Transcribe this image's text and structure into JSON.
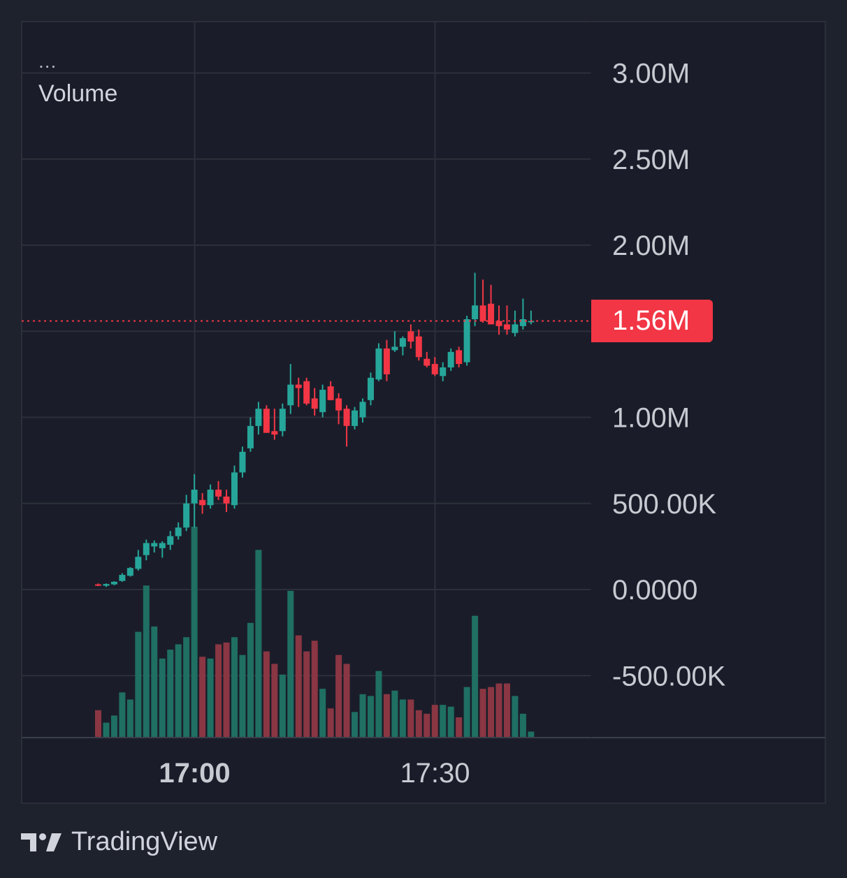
{
  "legend": {
    "menu": "...",
    "indicator": "Volume"
  },
  "price_badge": {
    "label": "1.56M",
    "color": "#f23645"
  },
  "footer": {
    "brand": "TradingView"
  },
  "colors": {
    "up": "#26a69a",
    "down": "#f23645",
    "vol_up": "#1f6f63",
    "vol_down": "#8a3643",
    "grid": "#2c303b",
    "axis_text": "#c7cad1",
    "background": "#1a1d29"
  },
  "chart_data": {
    "type": "candlestick",
    "title": "",
    "ylabel": "",
    "ylim": [
      -850000,
      3200000
    ],
    "y_ticks": [
      {
        "value": 3000000,
        "label": "3.00M"
      },
      {
        "value": 2500000,
        "label": "2.50M"
      },
      {
        "value": 2000000,
        "label": "2.00M"
      },
      {
        "value": 1500000,
        "label": "1.50M"
      },
      {
        "value": 1000000,
        "label": "1.00M"
      },
      {
        "value": 500000,
        "label": "500.00K"
      },
      {
        "value": 0,
        "label": "0.0000"
      },
      {
        "value": -500000,
        "label": "-500.00K"
      }
    ],
    "x_ticks": [
      {
        "label": "17:00",
        "bold": true,
        "bar_index": 12
      },
      {
        "label": "17:30",
        "bold": false,
        "bar_index": 42
      }
    ],
    "last_price": 1560000,
    "candles": [
      {
        "o": 30000,
        "h": 35000,
        "l": 20000,
        "c": 25000,
        "v": 0.15
      },
      {
        "o": 22000,
        "h": 35000,
        "l": 15000,
        "c": 32000,
        "v": 0.08
      },
      {
        "o": 30000,
        "h": 48000,
        "l": 25000,
        "c": 45000,
        "v": 0.12
      },
      {
        "o": 50000,
        "h": 95000,
        "l": 45000,
        "c": 85000,
        "v": 0.25
      },
      {
        "o": 80000,
        "h": 130000,
        "l": 75000,
        "c": 125000,
        "v": 0.21
      },
      {
        "o": 120000,
        "h": 230000,
        "l": 110000,
        "c": 190000,
        "v": 0.59
      },
      {
        "o": 200000,
        "h": 290000,
        "l": 170000,
        "c": 270000,
        "v": 0.85
      },
      {
        "o": 250000,
        "h": 285000,
        "l": 215000,
        "c": 270000,
        "v": 0.62
      },
      {
        "o": 240000,
        "h": 280000,
        "l": 185000,
        "c": 270000,
        "v": 0.44
      },
      {
        "o": 260000,
        "h": 340000,
        "l": 230000,
        "c": 310000,
        "v": 0.49
      },
      {
        "o": 310000,
        "h": 390000,
        "l": 290000,
        "c": 360000,
        "v": 0.52
      },
      {
        "o": 360000,
        "h": 550000,
        "l": 340000,
        "c": 500000,
        "v": 0.56
      },
      {
        "o": 500000,
        "h": 670000,
        "l": 360000,
        "c": 580000,
        "v": 1.18
      },
      {
        "o": 520000,
        "h": 560000,
        "l": 440000,
        "c": 490000,
        "v": 0.45
      },
      {
        "o": 490000,
        "h": 610000,
        "l": 470000,
        "c": 580000,
        "v": 0.44
      },
      {
        "o": 580000,
        "h": 630000,
        "l": 520000,
        "c": 540000,
        "v": 0.52
      },
      {
        "o": 540000,
        "h": 580000,
        "l": 450000,
        "c": 500000,
        "v": 0.53
      },
      {
        "o": 490000,
        "h": 720000,
        "l": 470000,
        "c": 680000,
        "v": 0.56
      },
      {
        "o": 680000,
        "h": 830000,
        "l": 650000,
        "c": 800000,
        "v": 0.46
      },
      {
        "o": 820000,
        "h": 1000000,
        "l": 800000,
        "c": 950000,
        "v": 0.64
      },
      {
        "o": 950000,
        "h": 1090000,
        "l": 900000,
        "c": 1050000,
        "v": 1.05
      },
      {
        "o": 1050000,
        "h": 1070000,
        "l": 910000,
        "c": 910000,
        "v": 0.48
      },
      {
        "o": 920000,
        "h": 1050000,
        "l": 870000,
        "c": 900000,
        "v": 0.41
      },
      {
        "o": 920000,
        "h": 1080000,
        "l": 890000,
        "c": 1050000,
        "v": 0.35
      },
      {
        "o": 1070000,
        "h": 1310000,
        "l": 1020000,
        "c": 1190000,
        "v": 0.82
      },
      {
        "o": 1190000,
        "h": 1230000,
        "l": 1060000,
        "c": 1170000,
        "v": 0.57
      },
      {
        "o": 1210000,
        "h": 1230000,
        "l": 1070000,
        "c": 1080000,
        "v": 0.48
      },
      {
        "o": 1110000,
        "h": 1170000,
        "l": 1010000,
        "c": 1050000,
        "v": 0.54
      },
      {
        "o": 1030000,
        "h": 1190000,
        "l": 1000000,
        "c": 1160000,
        "v": 0.27
      },
      {
        "o": 1180000,
        "h": 1210000,
        "l": 1100000,
        "c": 1100000,
        "v": 0.16
      },
      {
        "o": 1110000,
        "h": 1140000,
        "l": 960000,
        "c": 1040000,
        "v": 0.46
      },
      {
        "o": 1050000,
        "h": 1070000,
        "l": 830000,
        "c": 950000,
        "v": 0.41
      },
      {
        "o": 950000,
        "h": 1060000,
        "l": 930000,
        "c": 1040000,
        "v": 0.14
      },
      {
        "o": 1000000,
        "h": 1110000,
        "l": 970000,
        "c": 1090000,
        "v": 0.24
      },
      {
        "o": 1100000,
        "h": 1260000,
        "l": 1070000,
        "c": 1230000,
        "v": 0.23
      },
      {
        "o": 1220000,
        "h": 1430000,
        "l": 1210000,
        "c": 1400000,
        "v": 0.37
      },
      {
        "o": 1400000,
        "h": 1450000,
        "l": 1210000,
        "c": 1250000,
        "v": 0.24
      },
      {
        "o": 1390000,
        "h": 1500000,
        "l": 1380000,
        "c": 1410000,
        "v": 0.26
      },
      {
        "o": 1410000,
        "h": 1470000,
        "l": 1360000,
        "c": 1460000,
        "v": 0.21
      },
      {
        "o": 1500000,
        "h": 1540000,
        "l": 1400000,
        "c": 1440000,
        "v": 0.21
      },
      {
        "o": 1470000,
        "h": 1510000,
        "l": 1330000,
        "c": 1350000,
        "v": 0.15
      },
      {
        "o": 1340000,
        "h": 1380000,
        "l": 1290000,
        "c": 1300000,
        "v": 0.13
      },
      {
        "o": 1310000,
        "h": 1350000,
        "l": 1240000,
        "c": 1250000,
        "v": 0.18
      },
      {
        "o": 1240000,
        "h": 1320000,
        "l": 1210000,
        "c": 1290000,
        "v": 0.18
      },
      {
        "o": 1290000,
        "h": 1400000,
        "l": 1270000,
        "c": 1380000,
        "v": 0.17
      },
      {
        "o": 1390000,
        "h": 1410000,
        "l": 1290000,
        "c": 1310000,
        "v": 0.11
      },
      {
        "o": 1320000,
        "h": 1590000,
        "l": 1300000,
        "c": 1570000,
        "v": 0.28
      },
      {
        "o": 1570000,
        "h": 1840000,
        "l": 1530000,
        "c": 1650000,
        "v": 0.68
      },
      {
        "o": 1650000,
        "h": 1800000,
        "l": 1550000,
        "c": 1560000,
        "v": 0.27
      },
      {
        "o": 1660000,
        "h": 1770000,
        "l": 1540000,
        "c": 1540000,
        "v": 0.28
      },
      {
        "o": 1560000,
        "h": 1650000,
        "l": 1480000,
        "c": 1530000,
        "v": 0.3
      },
      {
        "o": 1540000,
        "h": 1650000,
        "l": 1480000,
        "c": 1510000,
        "v": 0.3
      },
      {
        "o": 1490000,
        "h": 1620000,
        "l": 1470000,
        "c": 1540000,
        "v": 0.23
      },
      {
        "o": 1530000,
        "h": 1690000,
        "l": 1510000,
        "c": 1570000,
        "v": 0.13
      },
      {
        "o": 1560000,
        "h": 1620000,
        "l": 1540000,
        "c": 1560000,
        "v": 0.03
      }
    ]
  }
}
